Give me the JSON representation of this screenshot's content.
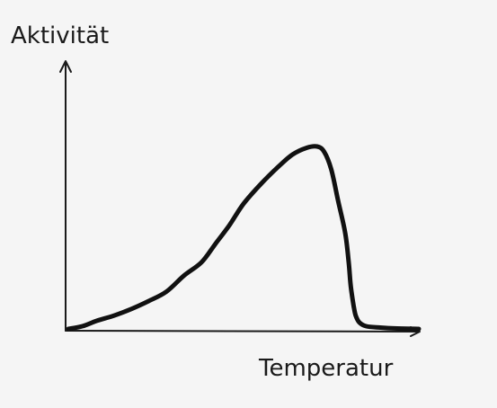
{
  "chart_data": {
    "type": "line",
    "ylabel": "Aktivität",
    "xlabel": "Temperatur",
    "grid": false,
    "legend": "none",
    "xlim": [
      0,
      100
    ],
    "ylim": [
      0,
      100
    ],
    "series": [
      {
        "x": [
          0,
          4,
          8,
          13,
          18,
          23,
          28,
          33,
          38,
          42,
          46,
          50,
          55,
          60,
          64,
          68,
          71,
          73,
          75,
          77,
          79,
          80,
          80.5,
          81,
          81.5,
          82,
          83,
          85,
          89,
          93,
          100
        ],
        "y": [
          0,
          1,
          3,
          5,
          7.5,
          10.5,
          14,
          20,
          25,
          32,
          39,
          47,
          54.5,
          61,
          65.5,
          68,
          68.5,
          66.5,
          60,
          48,
          36,
          25,
          17,
          12,
          8,
          5,
          2.5,
          1,
          0.5,
          0.2,
          0
        ]
      }
    ],
    "colors": {
      "line": "#111111",
      "axis": "#1a1a1a",
      "background": "#f5f5f5"
    }
  }
}
